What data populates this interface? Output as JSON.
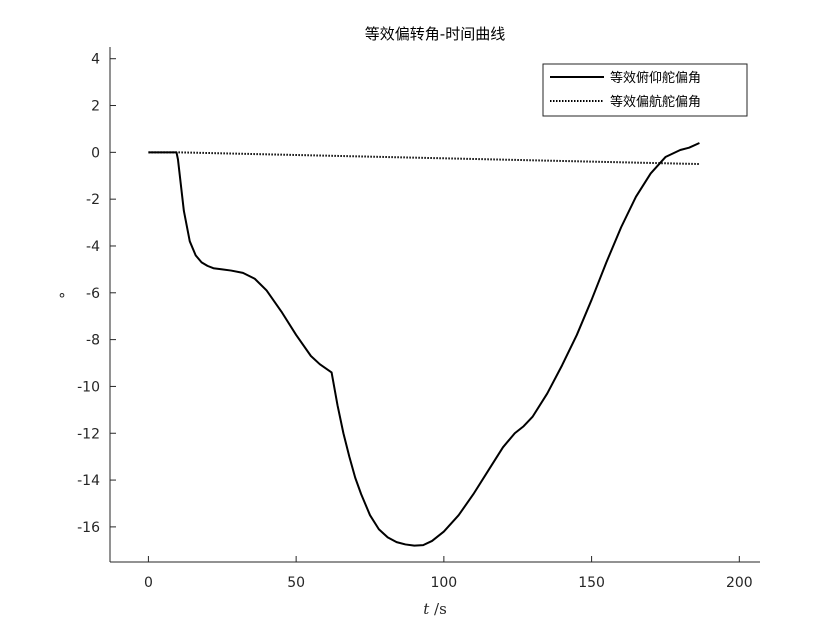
{
  "chart_data": {
    "type": "line",
    "title": "等效偏转角-时间曲线",
    "xlabel_italic": "t",
    "xlabel_unit": " /s",
    "ylabel": "°",
    "xlim": [
      -13,
      207
    ],
    "ylim": [
      -17.5,
      4.5
    ],
    "xticks": [
      0,
      50,
      100,
      150,
      200
    ],
    "yticks": [
      4,
      2,
      0,
      -2,
      -4,
      -6,
      -8,
      -10,
      -12,
      -14,
      -16
    ],
    "grid": false,
    "legend_position": "top-right",
    "series": [
      {
        "name": "等效俯仰舵偏角",
        "style": "solid",
        "color": "#000000",
        "x": [
          0,
          9.5,
          10,
          12,
          14,
          16,
          18,
          20,
          22,
          25,
          28,
          32,
          36,
          40,
          45,
          50,
          55,
          58,
          62,
          64,
          66,
          68,
          70,
          72,
          75,
          78,
          81,
          84,
          87,
          90,
          93,
          96,
          100,
          105,
          110,
          115,
          120,
          124,
          127,
          130,
          135,
          140,
          145,
          150,
          155,
          160,
          165,
          170,
          175,
          180,
          183,
          186.5
        ],
        "y": [
          0,
          0,
          -0.3,
          -2.5,
          -3.8,
          -4.4,
          -4.7,
          -4.85,
          -4.95,
          -5.0,
          -5.05,
          -5.15,
          -5.4,
          -5.9,
          -6.8,
          -7.8,
          -8.7,
          -9.05,
          -9.4,
          -10.8,
          -12.0,
          -13.0,
          -13.9,
          -14.6,
          -15.5,
          -16.1,
          -16.45,
          -16.65,
          -16.75,
          -16.8,
          -16.78,
          -16.6,
          -16.2,
          -15.5,
          -14.6,
          -13.6,
          -12.6,
          -12.0,
          -11.7,
          -11.3,
          -10.3,
          -9.1,
          -7.8,
          -6.3,
          -4.7,
          -3.2,
          -1.9,
          -0.9,
          -0.2,
          0.1,
          0.2,
          0.4
        ]
      },
      {
        "name": "等效偏航舵偏角",
        "style": "dotted",
        "color": "#000000",
        "x": [
          0,
          10,
          186.5
        ],
        "y": [
          0,
          0,
          -0.5
        ]
      }
    ]
  }
}
